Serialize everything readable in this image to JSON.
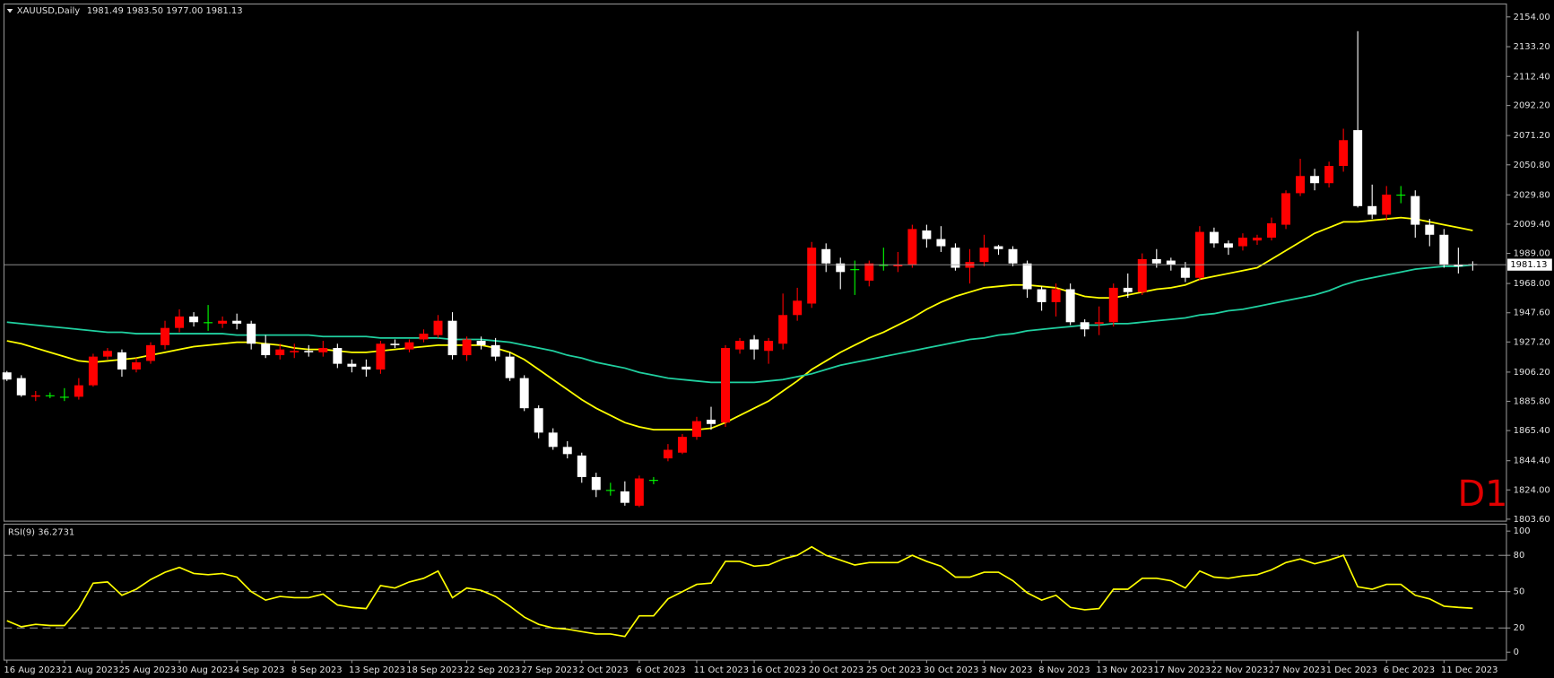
{
  "header": {
    "symbol": "XAUUSD,Daily",
    "ohlc": [
      "1981.49",
      "1983.50",
      "1977.00",
      "1981.13"
    ]
  },
  "chart_data": [
    {
      "type": "candlestick",
      "categories": [
        "16 Aug 2023",
        null,
        null,
        null,
        "21 Aug 2023",
        null,
        null,
        null,
        "25 Aug 2023",
        null,
        null,
        null,
        "30 Aug 2023",
        null,
        null,
        null,
        "4 Sep 2023",
        null,
        null,
        null,
        "8 Sep 2023",
        null,
        null,
        null,
        "13 Sep 2023",
        null,
        null,
        null,
        "18 Sep 2023",
        null,
        null,
        null,
        "22 Sep 2023",
        null,
        null,
        null,
        "27 Sep 2023",
        null,
        null,
        null,
        "2 Oct 2023",
        null,
        null,
        null,
        "6 Oct 2023",
        null,
        null,
        null,
        "11 Oct 2023",
        null,
        null,
        null,
        "16 Oct 2023",
        null,
        null,
        null,
        "20 Oct 2023",
        null,
        null,
        null,
        "25 Oct 2023",
        null,
        null,
        null,
        "30 Oct 2023",
        null,
        null,
        null,
        "3 Nov 2023",
        null,
        null,
        null,
        "8 Nov 2023",
        null,
        null,
        null,
        "13 Nov 2023",
        null,
        null,
        null,
        "17 Nov 2023",
        null,
        null,
        null,
        "22 Nov 2023",
        null,
        null,
        null,
        "27 Nov 2023",
        null,
        null,
        null,
        "1 Dec 2023",
        null,
        null,
        null,
        "6 Dec 2023",
        null,
        null,
        null,
        "11 Dec 2023",
        null,
        null
      ],
      "open": [
        1906,
        1902,
        1889,
        1890,
        1889,
        1889,
        1897,
        1917,
        1920,
        1908,
        1914,
        1925,
        1937,
        1945,
        1941,
        1940,
        1942,
        1940,
        1926,
        1918,
        1920,
        1921,
        1920,
        1923,
        1912,
        1910,
        1908,
        1926,
        1922,
        1929,
        1932,
        1942,
        1918,
        1928,
        1925,
        1917,
        1902,
        1881,
        1864,
        1854,
        1848,
        1833,
        1824,
        1823,
        1813,
        1831,
        1846,
        1850,
        1861,
        1873,
        1871,
        1922,
        1929,
        1921,
        1926,
        1946,
        1954,
        1992,
        1982,
        1978,
        1970,
        1981,
        1980,
        1981,
        2005,
        1999,
        1993,
        1979,
        1983,
        1994,
        1992,
        1982,
        1964,
        1955,
        1964,
        1941,
        1940,
        1941,
        1965,
        1962,
        1985,
        1984,
        1979,
        1972,
        2004,
        1996,
        1994,
        1998,
        2000,
        2009,
        2031,
        2043,
        2038,
        2050,
        2075,
        2022,
        2016,
        2030,
        2029,
        2009,
        2002,
        1981,
        1981.49
      ],
      "high": [
        1907,
        1904,
        1893,
        1892,
        1895,
        1902,
        1919,
        1923,
        1922,
        1916,
        1927,
        1942,
        1950,
        1948,
        1953,
        1945,
        1947,
        1942,
        1932,
        1926,
        1926,
        1925,
        1928,
        1926,
        1915,
        1915,
        1928,
        1929,
        1929,
        1936,
        1946,
        1948,
        1931,
        1931,
        1930,
        1920,
        1904,
        1883,
        1867,
        1858,
        1850,
        1836,
        1829,
        1830,
        1834,
        1833,
        1856,
        1863,
        1875,
        1882,
        1925,
        1930,
        1932,
        1930,
        1961,
        1965,
        1997,
        1996,
        1986,
        1984,
        1984,
        1993,
        1990,
        2009,
        2009,
        2008,
        1996,
        1992,
        2002,
        1995,
        1994,
        1984,
        1966,
        1968,
        1968,
        1943,
        1952,
        1968,
        1975,
        1989,
        1992,
        1986,
        1983,
        2008,
        2007,
        1998,
        2003,
        2002,
        2014,
        2033,
        2055,
        2048,
        2053,
        2076,
        2144,
        2037,
        2036,
        2036,
        2033,
        2013,
        2006,
        1993,
        1983.5
      ],
      "low": [
        1900,
        1889,
        1886,
        1888,
        1886,
        1887,
        1896,
        1915,
        1903,
        1906,
        1912,
        1922,
        1934,
        1938,
        1935,
        1937,
        1936,
        1922,
        1916,
        1915,
        1916,
        1917,
        1917,
        1909,
        1906,
        1903,
        1905,
        1923,
        1920,
        1927,
        1930,
        1915,
        1914,
        1922,
        1914,
        1900,
        1879,
        1860,
        1852,
        1846,
        1829,
        1819,
        1820,
        1813,
        1812,
        1828,
        1844,
        1849,
        1859,
        1866,
        1868,
        1919,
        1915,
        1912,
        1922,
        1942,
        1951,
        1976,
        1964,
        1960,
        1966,
        1977,
        1976,
        1979,
        1993,
        1990,
        1977,
        1968,
        1980,
        1988,
        1980,
        1958,
        1949,
        1945,
        1939,
        1931,
        1932,
        1938,
        1958,
        1960,
        1979,
        1977,
        1969,
        1970,
        1993,
        1988,
        1991,
        1995,
        1998,
        2006,
        2029,
        2033,
        2035,
        2046,
        2021,
        2013,
        2012,
        2024,
        2000,
        1994,
        1979,
        1975,
        1977
      ],
      "close": [
        1901,
        1890,
        1890,
        1890,
        1889,
        1897,
        1917,
        1921,
        1908,
        1913,
        1925,
        1937,
        1945,
        1941,
        1941,
        1942,
        1940,
        1926,
        1918,
        1922,
        1921,
        1920,
        1923,
        1912,
        1910,
        1908,
        1926,
        1925,
        1927,
        1933,
        1942,
        1918,
        1929,
        1925,
        1917,
        1902,
        1881,
        1864,
        1854,
        1849,
        1833,
        1824,
        1824,
        1815,
        1832,
        1831,
        1852,
        1861,
        1872,
        1870,
        1923,
        1928,
        1922,
        1928,
        1946,
        1956,
        1993,
        1982,
        1976,
        1978,
        1982,
        1981,
        1981,
        2006,
        1999,
        1994,
        1979,
        1983,
        1993,
        1992,
        1982,
        1964,
        1955,
        1964,
        1941,
        1936,
        1941,
        1965,
        1962,
        1985,
        1982,
        1981,
        1972,
        2004,
        1996,
        1993,
        2000,
        2000,
        2010,
        2031,
        2043,
        2038,
        2050,
        2068,
        2022,
        2016,
        2030,
        2030,
        2009,
        2002,
        1981,
        1980,
        1981.13
      ],
      "up_color": "#ff0000",
      "down_color": "#ffffff",
      "doji_color": "#00ff00",
      "ylim": [
        1803.6,
        2154
      ],
      "yticks": [
        {
          "value": 2154,
          "label": "2154.00"
        },
        {
          "value": 2133.2,
          "label": "2133.20"
        },
        {
          "value": 2112.4,
          "label": "2112.40"
        },
        {
          "value": 2092.2,
          "label": "2092.20"
        },
        {
          "value": 2071.2,
          "label": "2071.20"
        },
        {
          "value": 2050.8,
          "label": "2050.80"
        },
        {
          "value": 2029.8,
          "label": "2029.80"
        },
        {
          "value": 2009.4,
          "label": "2009.40"
        },
        {
          "value": 1989,
          "label": "1989.00"
        },
        {
          "value": 1968,
          "label": "1968.00"
        },
        {
          "value": 1947.6,
          "label": "1947.60"
        },
        {
          "value": 1927.2,
          "label": "1927.20"
        },
        {
          "value": 1906.2,
          "label": "1906.20"
        },
        {
          "value": 1885.8,
          "label": "1885.80"
        },
        {
          "value": 1865.4,
          "label": "1865.40"
        },
        {
          "value": 1844.4,
          "label": "1844.40"
        },
        {
          "value": 1824,
          "label": "1824.00"
        },
        {
          "value": 1803.6,
          "label": "1803.60"
        }
      ],
      "last_price": {
        "value": 1981.13,
        "label": "1981.13"
      },
      "moving_averages": [
        {
          "color": "#ffff00",
          "values": [
            1928,
            1926,
            1923,
            1920,
            1917,
            1914,
            1913,
            1914,
            1915,
            1916,
            1918,
            1920,
            1922,
            1924,
            1925,
            1926,
            1927,
            1927,
            1926,
            1925,
            1923,
            1922,
            1922,
            1921,
            1920,
            1920,
            1921,
            1922,
            1923,
            1924,
            1925,
            1925,
            1925,
            1925,
            1923,
            1920,
            1915,
            1908,
            1901,
            1894,
            1887,
            1881,
            1876,
            1871,
            1868,
            1866,
            1866,
            1866,
            1866,
            1867,
            1871,
            1876,
            1881,
            1886,
            1893,
            1900,
            1908,
            1914,
            1920,
            1925,
            1930,
            1934,
            1939,
            1944,
            1950,
            1955,
            1959,
            1962,
            1965,
            1966,
            1967,
            1967,
            1966,
            1965,
            1962,
            1959,
            1958,
            1958,
            1960,
            1962,
            1964,
            1965,
            1967,
            1971,
            1973,
            1975,
            1977,
            1979,
            1985,
            1991,
            1997,
            2003,
            2007,
            2011,
            2011,
            2012,
            2013,
            2014,
            2013,
            2011,
            2009,
            2007,
            2005
          ]
        },
        {
          "color": "#20d0a0",
          "values": [
            1941,
            1940,
            1939,
            1938,
            1937,
            1936,
            1935,
            1934,
            1934,
            1933,
            1933,
            1933,
            1933,
            1933,
            1933,
            1933,
            1932,
            1932,
            1932,
            1932,
            1932,
            1932,
            1931,
            1931,
            1931,
            1931,
            1930,
            1930,
            1930,
            1930,
            1930,
            1929,
            1929,
            1929,
            1928,
            1927,
            1925,
            1923,
            1921,
            1918,
            1916,
            1913,
            1911,
            1909,
            1906,
            1904,
            1902,
            1901,
            1900,
            1899,
            1899,
            1899,
            1899,
            1900,
            1901,
            1903,
            1905,
            1908,
            1911,
            1913,
            1915,
            1917,
            1919,
            1921,
            1923,
            1925,
            1927,
            1929,
            1930,
            1932,
            1933,
            1935,
            1936,
            1937,
            1938,
            1939,
            1939,
            1940,
            1940,
            1941,
            1942,
            1943,
            1944,
            1946,
            1947,
            1949,
            1950,
            1952,
            1954,
            1956,
            1958,
            1960,
            1963,
            1967,
            1970,
            1972,
            1974,
            1976,
            1978,
            1979,
            1980,
            1980,
            1981
          ]
        }
      ],
      "badge": "D1"
    },
    {
      "type": "line",
      "title": "RSI(9) 36.2731",
      "color": "#ffff00",
      "values": [
        26,
        21,
        23,
        22,
        22,
        36,
        57,
        58,
        47,
        52,
        60,
        66,
        70,
        65,
        64,
        65,
        62,
        50,
        43,
        46,
        45,
        45,
        48,
        39,
        37,
        36,
        55,
        53,
        58,
        61,
        67,
        45,
        53,
        51,
        46,
        38,
        29,
        23,
        20,
        19,
        17,
        15,
        15,
        13,
        30,
        30,
        44,
        50,
        56,
        57,
        75,
        75,
        71,
        72,
        77,
        80,
        87,
        80,
        76,
        72,
        74,
        74,
        74,
        80,
        75,
        71,
        62,
        62,
        66,
        66,
        59,
        49,
        43,
        47,
        37,
        35,
        36,
        52,
        52,
        61,
        61,
        59,
        53,
        67,
        62,
        61,
        63,
        64,
        68,
        74,
        77,
        73,
        76,
        80,
        54,
        52,
        56,
        56,
        47,
        44,
        38,
        37,
        36.2731
      ],
      "ylim": [
        0,
        100
      ],
      "yticks": [
        100,
        80,
        50,
        20,
        0
      ],
      "dashed_levels": [
        80,
        50,
        20
      ]
    }
  ]
}
